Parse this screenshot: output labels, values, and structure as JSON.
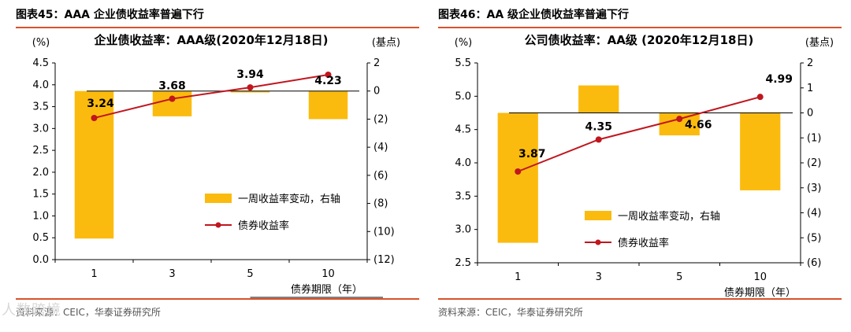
{
  "chart_data": [
    {
      "type": "bar+line",
      "figure_label": "图表45：",
      "figure_title": "AAA 企业债收益率普遍下行",
      "title": "企业债收益率：AAA级(2020年12月18日)",
      "ylabel_left": "(%)",
      "ylabel_right": "(基点)",
      "xlabel": "债券期限（年）",
      "categories": [
        "1",
        "3",
        "5",
        "10"
      ],
      "ylim_left": [
        0.0,
        4.5
      ],
      "yticks_left": [
        "0.0",
        "0.5",
        "1.0",
        "1.5",
        "2.0",
        "2.5",
        "3.0",
        "3.5",
        "4.0",
        "4.5"
      ],
      "ylim_right": [
        -12,
        2
      ],
      "yticks_right": [
        "(12)",
        "(10)",
        "(8)",
        "(6)",
        "(4)",
        "(2)",
        "0",
        "2"
      ],
      "series": [
        {
          "name": "一周收益率变动，右轴",
          "kind": "bar",
          "axis": "right",
          "color": "#fbbb0e",
          "values": [
            -10.5,
            -1.8,
            -0.1,
            -2.0
          ]
        },
        {
          "name": "债券收益率",
          "kind": "line",
          "axis": "left",
          "color": "#c0161e",
          "values": [
            3.24,
            3.68,
            3.94,
            4.23
          ],
          "labels": [
            "3.24",
            "3.68",
            "3.94",
            "4.23"
          ]
        }
      ],
      "source": "资料来源：CEIC，华泰证券研究所"
    },
    {
      "type": "bar+line",
      "figure_label": "图表46：",
      "figure_title": "AA 级企业债收益率普遍下行",
      "title": "公司债收益率：AA级 (2020年12月18日)",
      "ylabel_left": "(%)",
      "ylabel_right": "(基点)",
      "xlabel": "债券期限（年）",
      "categories": [
        "1",
        "3",
        "5",
        "10"
      ],
      "ylim_left": [
        2.5,
        5.5
      ],
      "yticks_left": [
        "2.5",
        "3.0",
        "3.5",
        "4.0",
        "4.5",
        "5.0",
        "5.5"
      ],
      "ylim_right": [
        -6,
        2
      ],
      "yticks_right": [
        "(6)",
        "(5)",
        "(4)",
        "(3)",
        "(2)",
        "(1)",
        "0",
        "1",
        "2"
      ],
      "series": [
        {
          "name": "一周收益率变动，右轴",
          "kind": "bar",
          "axis": "right",
          "color": "#fbbb0e",
          "values": [
            -5.2,
            1.1,
            -0.9,
            -3.1
          ]
        },
        {
          "name": "债券收益率",
          "kind": "line",
          "axis": "left",
          "color": "#c0161e",
          "values": [
            3.87,
            4.35,
            4.66,
            4.99
          ],
          "labels": [
            "3.87",
            "4.35",
            "4.66",
            "4.99"
          ]
        }
      ],
      "source": "资料来源：CEIC，华泰证券研究所"
    }
  ],
  "watermark": "人数跨境"
}
